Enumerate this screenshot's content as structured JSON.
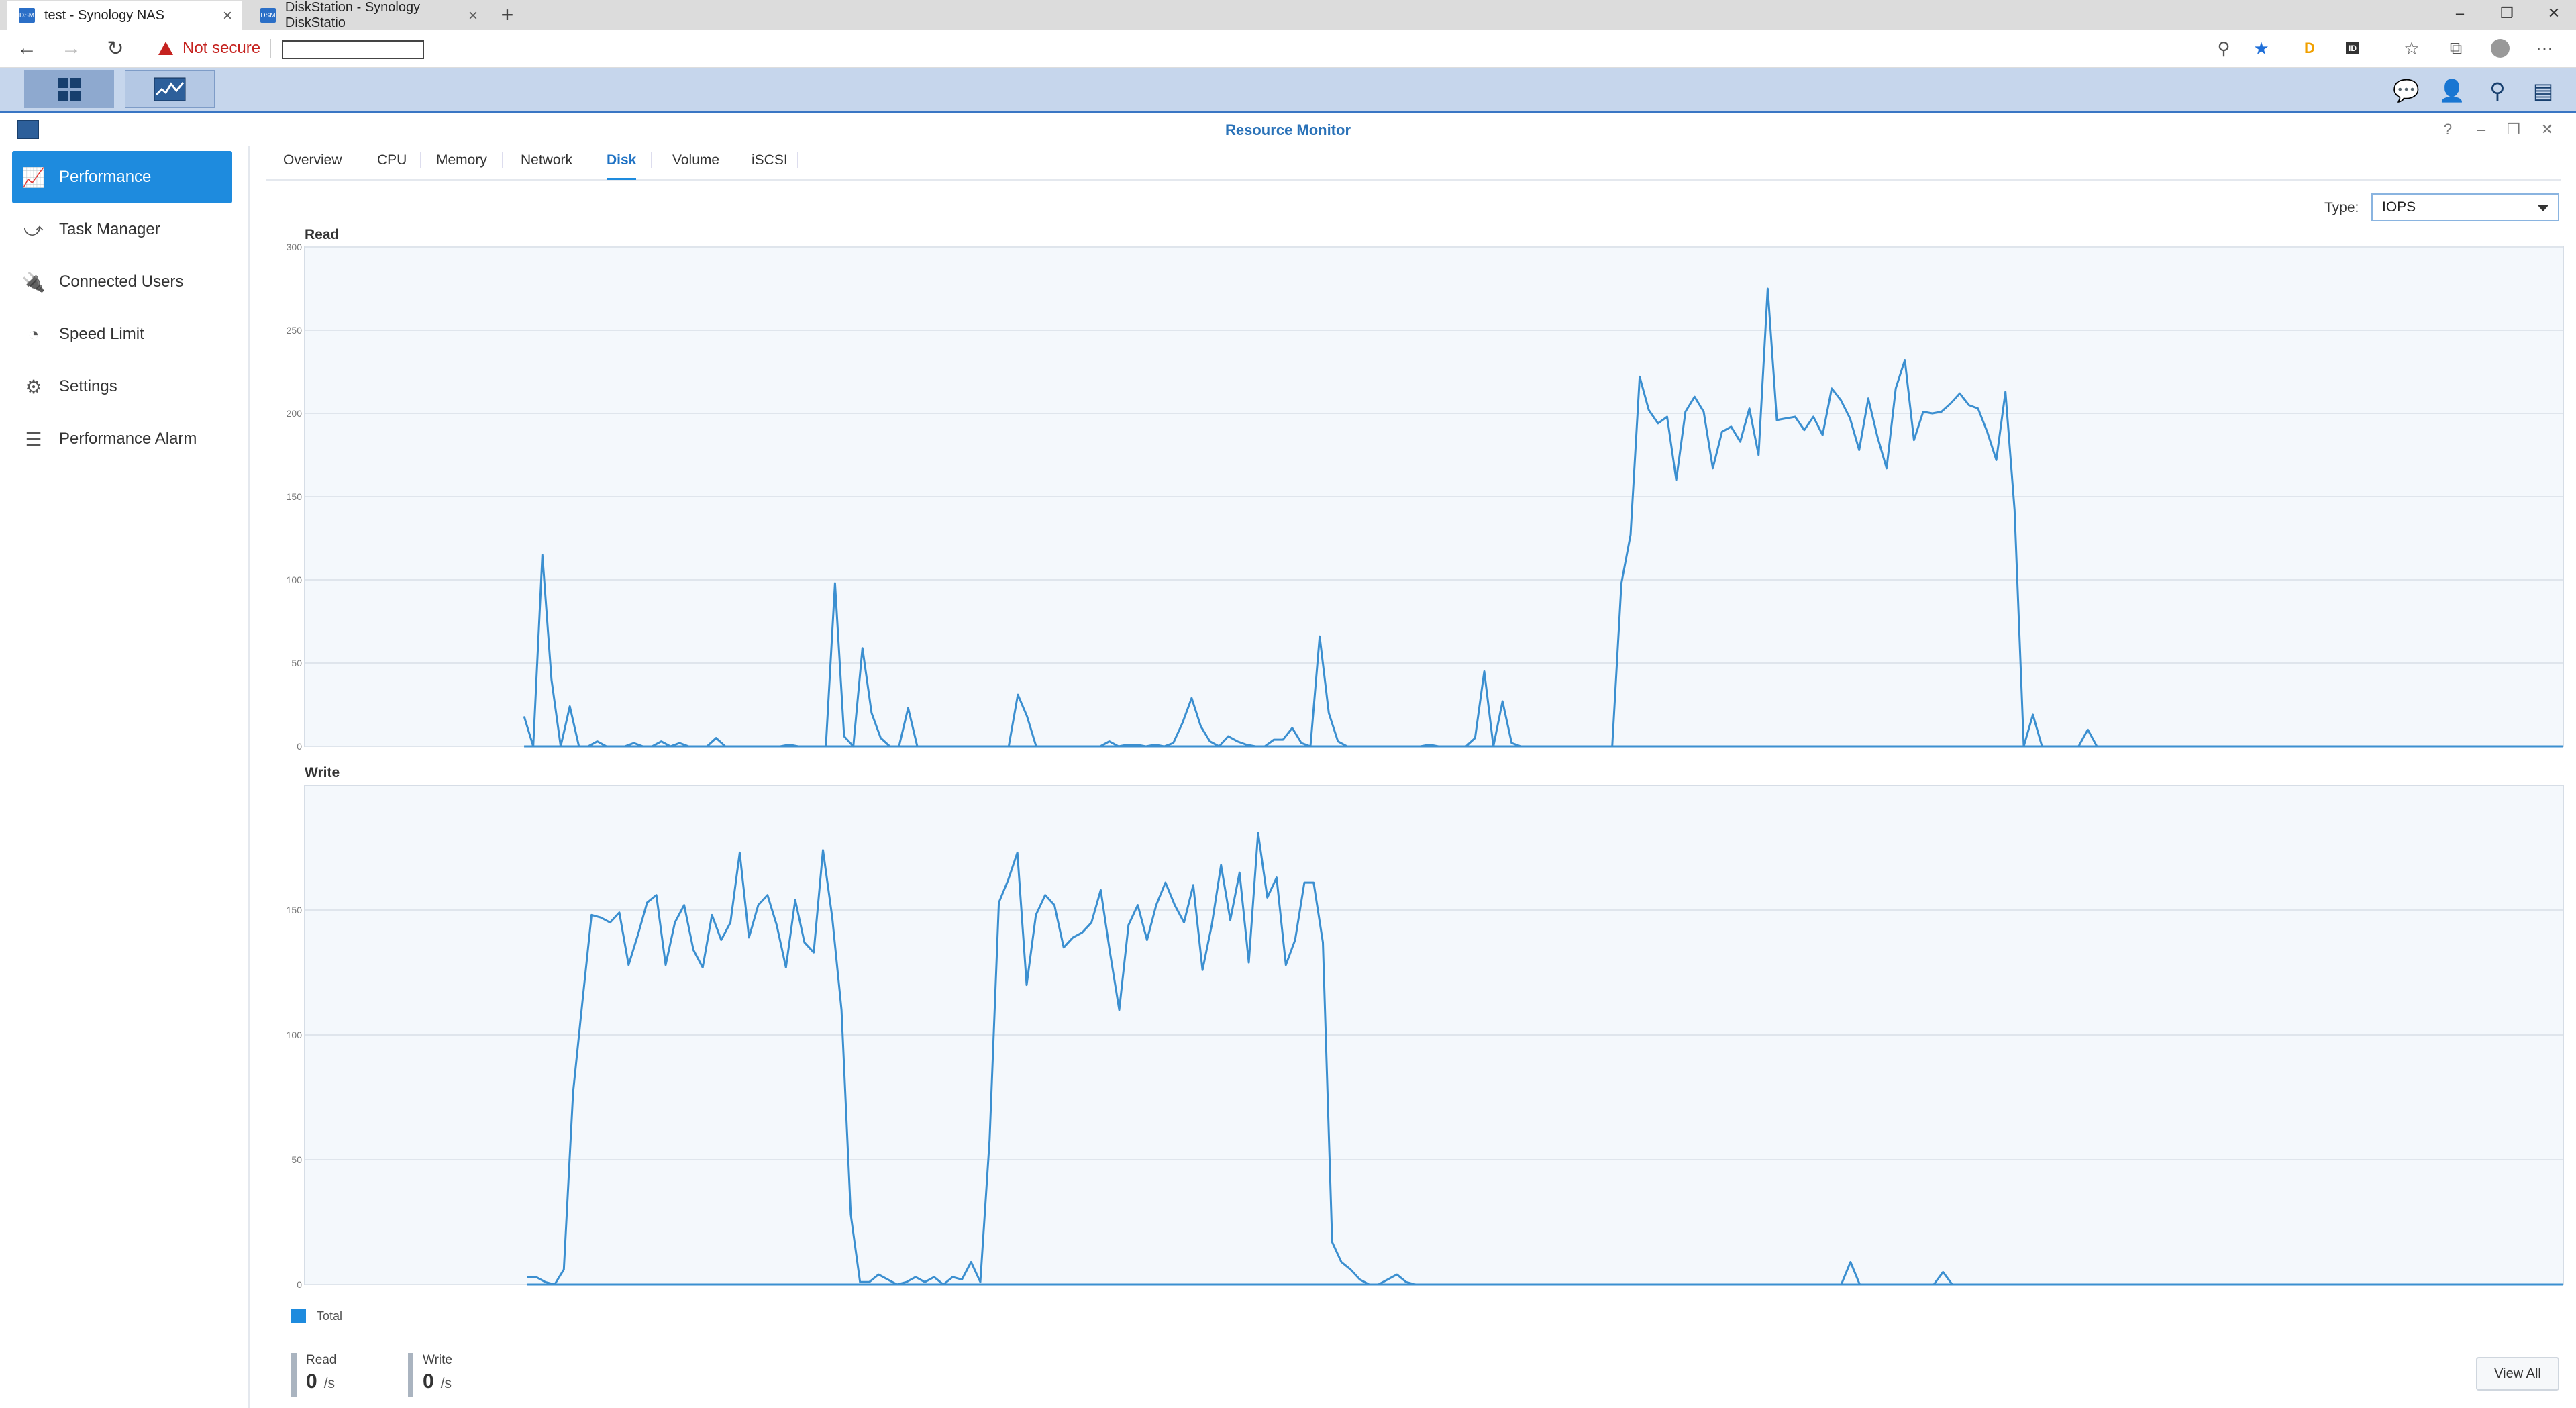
{
  "browser": {
    "tabs": [
      {
        "title": "test - Synology NAS",
        "favicon": "DSM"
      },
      {
        "title": "DiskStation - Synology DiskStatio",
        "favicon": "DSM"
      }
    ],
    "not_secure": "Not secure"
  },
  "window": {
    "title": "Resource Monitor"
  },
  "sidebar": {
    "items": [
      {
        "label": "Performance",
        "icon": "performance-icon"
      },
      {
        "label": "Task Manager",
        "icon": "task-manager-icon"
      },
      {
        "label": "Connected Users",
        "icon": "plug-icon"
      },
      {
        "label": "Speed Limit",
        "icon": "speedometer-icon"
      },
      {
        "label": "Settings",
        "icon": "gear-icon"
      },
      {
        "label": "Performance Alarm",
        "icon": "list-icon"
      }
    ]
  },
  "main": {
    "tabs": [
      "Overview",
      "CPU",
      "Memory",
      "Network",
      "Disk",
      "Volume",
      "iSCSI"
    ],
    "active_tab": "Disk",
    "type_label": "Type:",
    "type_value": "IOPS",
    "legend": "Total",
    "stats": {
      "read_label": "Read",
      "read_value": "0",
      "read_unit": "/s",
      "write_label": "Write",
      "write_value": "0",
      "write_unit": "/s"
    },
    "view_all": "View All"
  },
  "colors": {
    "accent": "#1e8bde",
    "line": "#3b8fd0",
    "plot_bg": "#f4f8fc"
  },
  "chart_data": [
    {
      "type": "line",
      "title": "Read",
      "ylim": [
        0,
        300
      ],
      "yticks": [
        0,
        50,
        100,
        150,
        200,
        250,
        300
      ],
      "grid": true,
      "series": [
        {
          "name": "Total",
          "values": [
            0,
            0,
            0,
            0,
            0,
            0,
            0,
            0,
            0,
            0,
            0,
            0,
            0,
            0,
            0,
            0,
            0,
            0,
            0,
            0,
            0,
            0,
            0,
            0,
            18,
            0,
            115,
            40,
            0,
            24,
            0,
            0,
            3,
            0,
            0,
            0,
            2,
            0,
            0,
            3,
            0,
            2,
            0,
            0,
            0,
            5,
            0,
            0,
            0,
            0,
            0,
            0,
            0,
            1,
            0,
            0,
            0,
            0,
            98,
            6,
            0,
            59,
            20,
            5,
            0,
            0,
            23,
            0,
            0,
            0,
            0,
            0,
            0,
            0,
            0,
            0,
            0,
            0,
            31,
            18,
            0,
            0,
            0,
            0,
            0,
            0,
            0,
            0,
            3,
            0,
            1,
            1,
            0,
            1,
            0,
            2,
            14,
            29,
            12,
            3,
            0,
            6,
            3,
            1,
            0,
            0,
            4,
            4,
            11,
            2,
            0,
            66,
            20,
            3,
            0,
            0,
            0,
            0,
            0,
            0,
            0,
            0,
            0,
            1,
            0,
            0,
            0,
            0,
            5,
            45,
            0,
            27,
            2,
            0,
            0,
            0,
            0,
            0,
            0,
            0,
            0,
            0,
            0,
            0,
            98,
            127,
            222,
            202,
            194,
            198,
            160,
            201,
            210,
            201,
            167,
            189,
            192,
            183,
            203,
            175,
            275,
            196,
            197,
            198,
            190,
            198,
            187,
            215,
            208,
            197,
            178,
            209,
            186,
            167,
            215,
            232,
            184,
            201,
            200,
            201,
            206,
            212,
            205,
            203,
            189,
            172,
            213,
            142,
            0,
            19,
            0,
            0,
            0,
            0,
            0,
            10,
            0,
            0,
            0,
            0,
            0,
            0,
            0,
            0,
            0,
            0,
            0,
            0,
            0,
            0,
            0,
            0,
            0,
            0,
            0,
            0,
            0,
            0,
            0,
            0,
            0,
            0,
            0,
            0,
            0,
            0,
            0,
            0,
            0,
            0,
            0,
            0,
            0,
            0,
            0,
            0,
            0,
            0,
            0,
            0,
            0,
            0,
            0,
            0,
            0,
            0,
            0,
            0
          ]
        }
      ]
    },
    {
      "type": "line",
      "title": "Write",
      "ylim": [
        0,
        200
      ],
      "yticks": [
        0,
        50,
        100,
        150
      ],
      "grid": true,
      "series": [
        {
          "name": "Total",
          "values": [
            0,
            0,
            0,
            0,
            0,
            0,
            0,
            0,
            0,
            0,
            0,
            0,
            0,
            0,
            0,
            0,
            0,
            0,
            0,
            0,
            0,
            0,
            0,
            0,
            3,
            3,
            1,
            0,
            6,
            77,
            113,
            148,
            147,
            145,
            149,
            128,
            140,
            153,
            156,
            128,
            145,
            152,
            134,
            127,
            148,
            138,
            145,
            173,
            139,
            152,
            156,
            144,
            127,
            154,
            137,
            133,
            174,
            147,
            110,
            28,
            1,
            1,
            4,
            2,
            0,
            1,
            3,
            1,
            3,
            0,
            3,
            2,
            9,
            1,
            58,
            153,
            162,
            173,
            120,
            148,
            156,
            152,
            135,
            139,
            141,
            145,
            158,
            133,
            110,
            144,
            152,
            138,
            152,
            161,
            152,
            145,
            160,
            126,
            144,
            168,
            146,
            165,
            129,
            181,
            155,
            163,
            128,
            138,
            161,
            161,
            137,
            17,
            9,
            6,
            2,
            0,
            0,
            2,
            4,
            1,
            0,
            0,
            0,
            0,
            0,
            0,
            0,
            0,
            0,
            0,
            0,
            0,
            0,
            0,
            0,
            0,
            0,
            0,
            0,
            0,
            0,
            0,
            0,
            0,
            0,
            0,
            0,
            0,
            0,
            0,
            0,
            0,
            0,
            0,
            0,
            0,
            0,
            0,
            0,
            0,
            0,
            0,
            0,
            0,
            0,
            0,
            0,
            9,
            0,
            0,
            0,
            0,
            0,
            0,
            0,
            0,
            0,
            5,
            0,
            0,
            0,
            0,
            0,
            0,
            0,
            0,
            0,
            0,
            0,
            0,
            0,
            0,
            0,
            0,
            0,
            0,
            0,
            0,
            0,
            0,
            0,
            0,
            0,
            0,
            0,
            0,
            0,
            0,
            0,
            0,
            0,
            0,
            0,
            0,
            0,
            0,
            0,
            0,
            0,
            0,
            0,
            0,
            0,
            0,
            0,
            0,
            0,
            0,
            0,
            0,
            0,
            0,
            0,
            0,
            0,
            0,
            0,
            0,
            0,
            0,
            0,
            0,
            0,
            0,
            0
          ]
        }
      ]
    }
  ]
}
